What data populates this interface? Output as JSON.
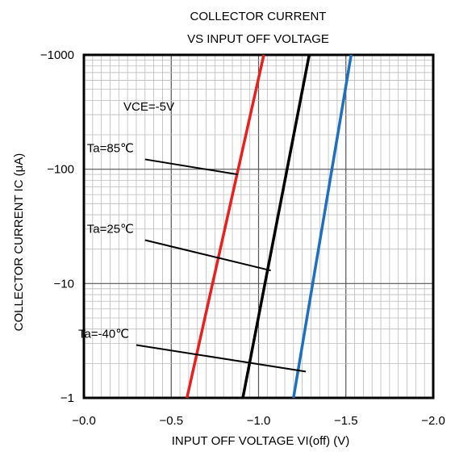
{
  "chart_data": {
    "type": "line",
    "title": [
      "COLLECTOR CURRENT",
      "VS INPUT OFF VOLTAGE"
    ],
    "xlabel": "INPUT OFF VOLTAGE VI(off) (V)",
    "ylabel": "COLLECTOR CURRENT IC (μA)",
    "x_scale": "linear",
    "y_scale": "log",
    "xlim": [
      0.0,
      -2.0
    ],
    "ylim": [
      -1,
      -1000
    ],
    "x_ticks": [
      0.0,
      -0.5,
      -1.0,
      -1.5,
      -2.0
    ],
    "x_tick_labels": [
      "−0.0",
      "−0.5",
      "−1.0",
      "−1.5",
      "−2.0"
    ],
    "y_ticks": [
      -1,
      -10,
      -100,
      -1000
    ],
    "y_tick_labels": [
      "−1",
      "−10",
      "−100",
      "−1000"
    ],
    "grid": true,
    "condition_label": "VCE=-5V",
    "series": [
      {
        "name": "Ta=85℃",
        "color": "#e8201e",
        "x": [
          -0.59,
          -1.03
        ],
        "y": [
          -1,
          -1000
        ]
      },
      {
        "name": "Ta=25℃",
        "color": "#000000",
        "x": [
          -0.91,
          -1.29
        ],
        "y": [
          -1,
          -1000
        ]
      },
      {
        "name": "Ta=-40℃",
        "color": "#1f6fc0",
        "x": [
          -1.2,
          -1.53
        ],
        "y": [
          -1,
          -1000
        ]
      }
    ],
    "annotations": [
      {
        "text": "Ta=85℃",
        "series": 0,
        "label_at": [
          -0.35,
          -122
        ],
        "point_at": [
          -0.88,
          -90
        ]
      },
      {
        "text": "Ta=25℃",
        "series": 1,
        "label_at": [
          -0.35,
          -24
        ],
        "point_at": [
          -1.07,
          -13
        ]
      },
      {
        "text": "Ta=-40℃",
        "series": 2,
        "label_at": [
          -0.3,
          -2.9
        ],
        "point_at": [
          -1.27,
          -1.7
        ]
      }
    ]
  }
}
